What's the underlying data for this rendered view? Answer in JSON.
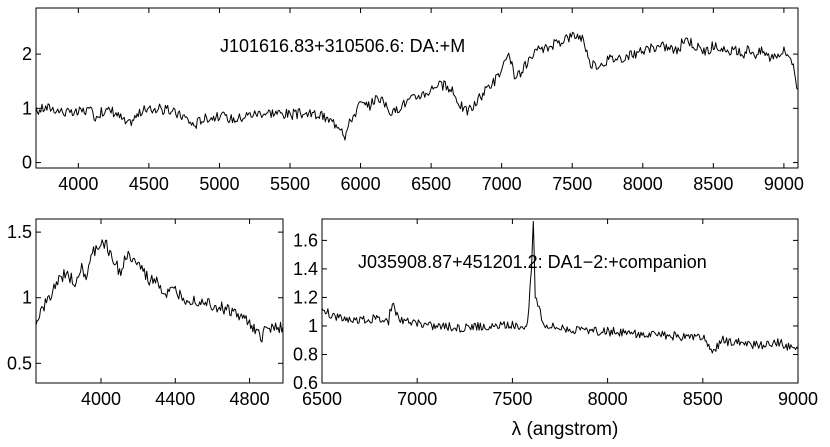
{
  "chart_data": [
    {
      "type": "line",
      "title": "J101616.83+310506.6: DA:+M",
      "xlabel": "",
      "ylabel": "",
      "xlim": [
        3700,
        9100
      ],
      "ylim": [
        -0.1,
        2.85
      ],
      "xticks": [
        4000,
        4500,
        5000,
        5500,
        6000,
        6500,
        7000,
        7500,
        8000,
        8500,
        9000
      ],
      "yticks": [
        0,
        1,
        2
      ],
      "grid": false,
      "series": [
        {
          "noise": 0.08,
          "x": [
            3700,
            3760,
            3820,
            3880,
            3950,
            4000,
            4060,
            4120,
            4180,
            4250,
            4350,
            4450,
            4550,
            4650,
            4750,
            4820,
            4860,
            4900,
            5000,
            5100,
            5200,
            5300,
            5400,
            5500,
            5600,
            5700,
            5800,
            5860,
            5890,
            5930,
            6000,
            6050,
            6090,
            6130,
            6180,
            6230,
            6280,
            6350,
            6420,
            6480,
            6540,
            6600,
            6650,
            6700,
            6740,
            6790,
            6850,
            6900,
            6950,
            7000,
            7050,
            7080,
            7100,
            7150,
            7200,
            7260,
            7320,
            7380,
            7450,
            7520,
            7580,
            7620,
            7640,
            7680,
            7750,
            7850,
            7950,
            8050,
            8150,
            8200,
            8250,
            8300,
            8350,
            8400,
            8450,
            8500,
            8550,
            8600,
            8650,
            8700,
            8750,
            8800,
            8850,
            8900,
            8950,
            9000,
            9050,
            9100
          ],
          "y": [
            0.95,
            1.0,
            1.0,
            0.95,
            0.9,
            0.92,
            0.98,
            0.85,
            0.95,
            0.95,
            0.7,
            0.95,
            1.0,
            0.95,
            0.85,
            0.68,
            0.78,
            0.82,
            0.85,
            0.8,
            0.88,
            0.92,
            0.92,
            0.88,
            0.9,
            0.88,
            0.75,
            0.68,
            0.5,
            0.78,
            1.1,
            1.0,
            1.15,
            1.2,
            1.05,
            0.9,
            1.05,
            1.15,
            1.25,
            1.3,
            1.45,
            1.4,
            1.3,
            1.1,
            0.95,
            1.0,
            1.2,
            1.4,
            1.5,
            1.7,
            1.95,
            1.7,
            1.55,
            1.7,
            1.9,
            2.05,
            2.1,
            2.2,
            2.3,
            2.35,
            2.3,
            1.85,
            1.8,
            1.8,
            1.9,
            1.95,
            2.0,
            2.1,
            2.15,
            2.1,
            2.05,
            2.3,
            2.2,
            2.1,
            2.05,
            2.15,
            2.1,
            2.0,
            2.05,
            2.0,
            2.1,
            2.0,
            2.05,
            1.95,
            2.0,
            2.05,
            1.95,
            1.35
          ]
        }
      ]
    },
    {
      "type": "line",
      "title": "",
      "xlabel": "",
      "ylabel": "",
      "xlim": [
        3650,
        4980
      ],
      "ylim": [
        0.35,
        1.6
      ],
      "xticks": [
        4000,
        4400,
        4800
      ],
      "yticks": [
        0.5,
        1,
        1.5
      ],
      "grid": false,
      "series": [
        {
          "noise": 0.04,
          "x": [
            3650,
            3700,
            3760,
            3820,
            3860,
            3890,
            3920,
            3960,
            4000,
            4030,
            4060,
            4100,
            4140,
            4180,
            4220,
            4260,
            4300,
            4340,
            4400,
            4450,
            4500,
            4550,
            4600,
            4650,
            4700,
            4750,
            4800,
            4830,
            4860,
            4880,
            4920,
            4980
          ],
          "y": [
            0.8,
            0.95,
            1.1,
            1.2,
            1.1,
            1.25,
            1.15,
            1.35,
            1.42,
            1.4,
            1.3,
            1.2,
            1.32,
            1.28,
            1.22,
            1.12,
            1.15,
            1.02,
            1.05,
            1.0,
            0.98,
            0.98,
            0.95,
            0.92,
            0.9,
            0.85,
            0.82,
            0.75,
            0.68,
            0.75,
            0.78,
            0.78
          ]
        }
      ]
    },
    {
      "type": "line",
      "title": "J035908.87+451201.2: DA1−2:+companion",
      "xlabel": "λ (angstrom)",
      "ylabel": "",
      "xlim": [
        6500,
        9000
      ],
      "ylim": [
        0.6,
        1.75
      ],
      "xticks": [
        6500,
        7000,
        7500,
        8000,
        8500,
        9000
      ],
      "yticks": [
        0.6,
        0.8,
        1,
        1.2,
        1.4,
        1.6
      ],
      "grid": false,
      "series": [
        {
          "noise": 0.025,
          "x": [
            6500,
            6550,
            6600,
            6650,
            6700,
            6750,
            6800,
            6850,
            6870,
            6900,
            6950,
            7000,
            7050,
            7100,
            7150,
            7200,
            7250,
            7300,
            7350,
            7400,
            7450,
            7500,
            7550,
            7580,
            7600,
            7610,
            7620,
            7640,
            7660,
            7700,
            7750,
            7800,
            7850,
            7900,
            7950,
            8000,
            8100,
            8200,
            8300,
            8400,
            8500,
            8550,
            8600,
            8700,
            8800,
            8900,
            9000
          ],
          "y": [
            1.1,
            1.08,
            1.06,
            1.05,
            1.04,
            1.05,
            1.05,
            1.04,
            1.18,
            1.05,
            1.03,
            1.02,
            1.01,
            1.0,
            1.0,
            0.98,
            0.99,
            1.0,
            0.99,
            0.99,
            1.0,
            1.0,
            1.0,
            1.01,
            1.4,
            1.75,
            1.2,
            1.15,
            1.02,
            1.0,
            0.99,
            0.98,
            0.97,
            0.97,
            0.96,
            0.96,
            0.95,
            0.94,
            0.93,
            0.92,
            0.92,
            0.8,
            0.9,
            0.88,
            0.86,
            0.88,
            0.84
          ]
        }
      ]
    }
  ]
}
